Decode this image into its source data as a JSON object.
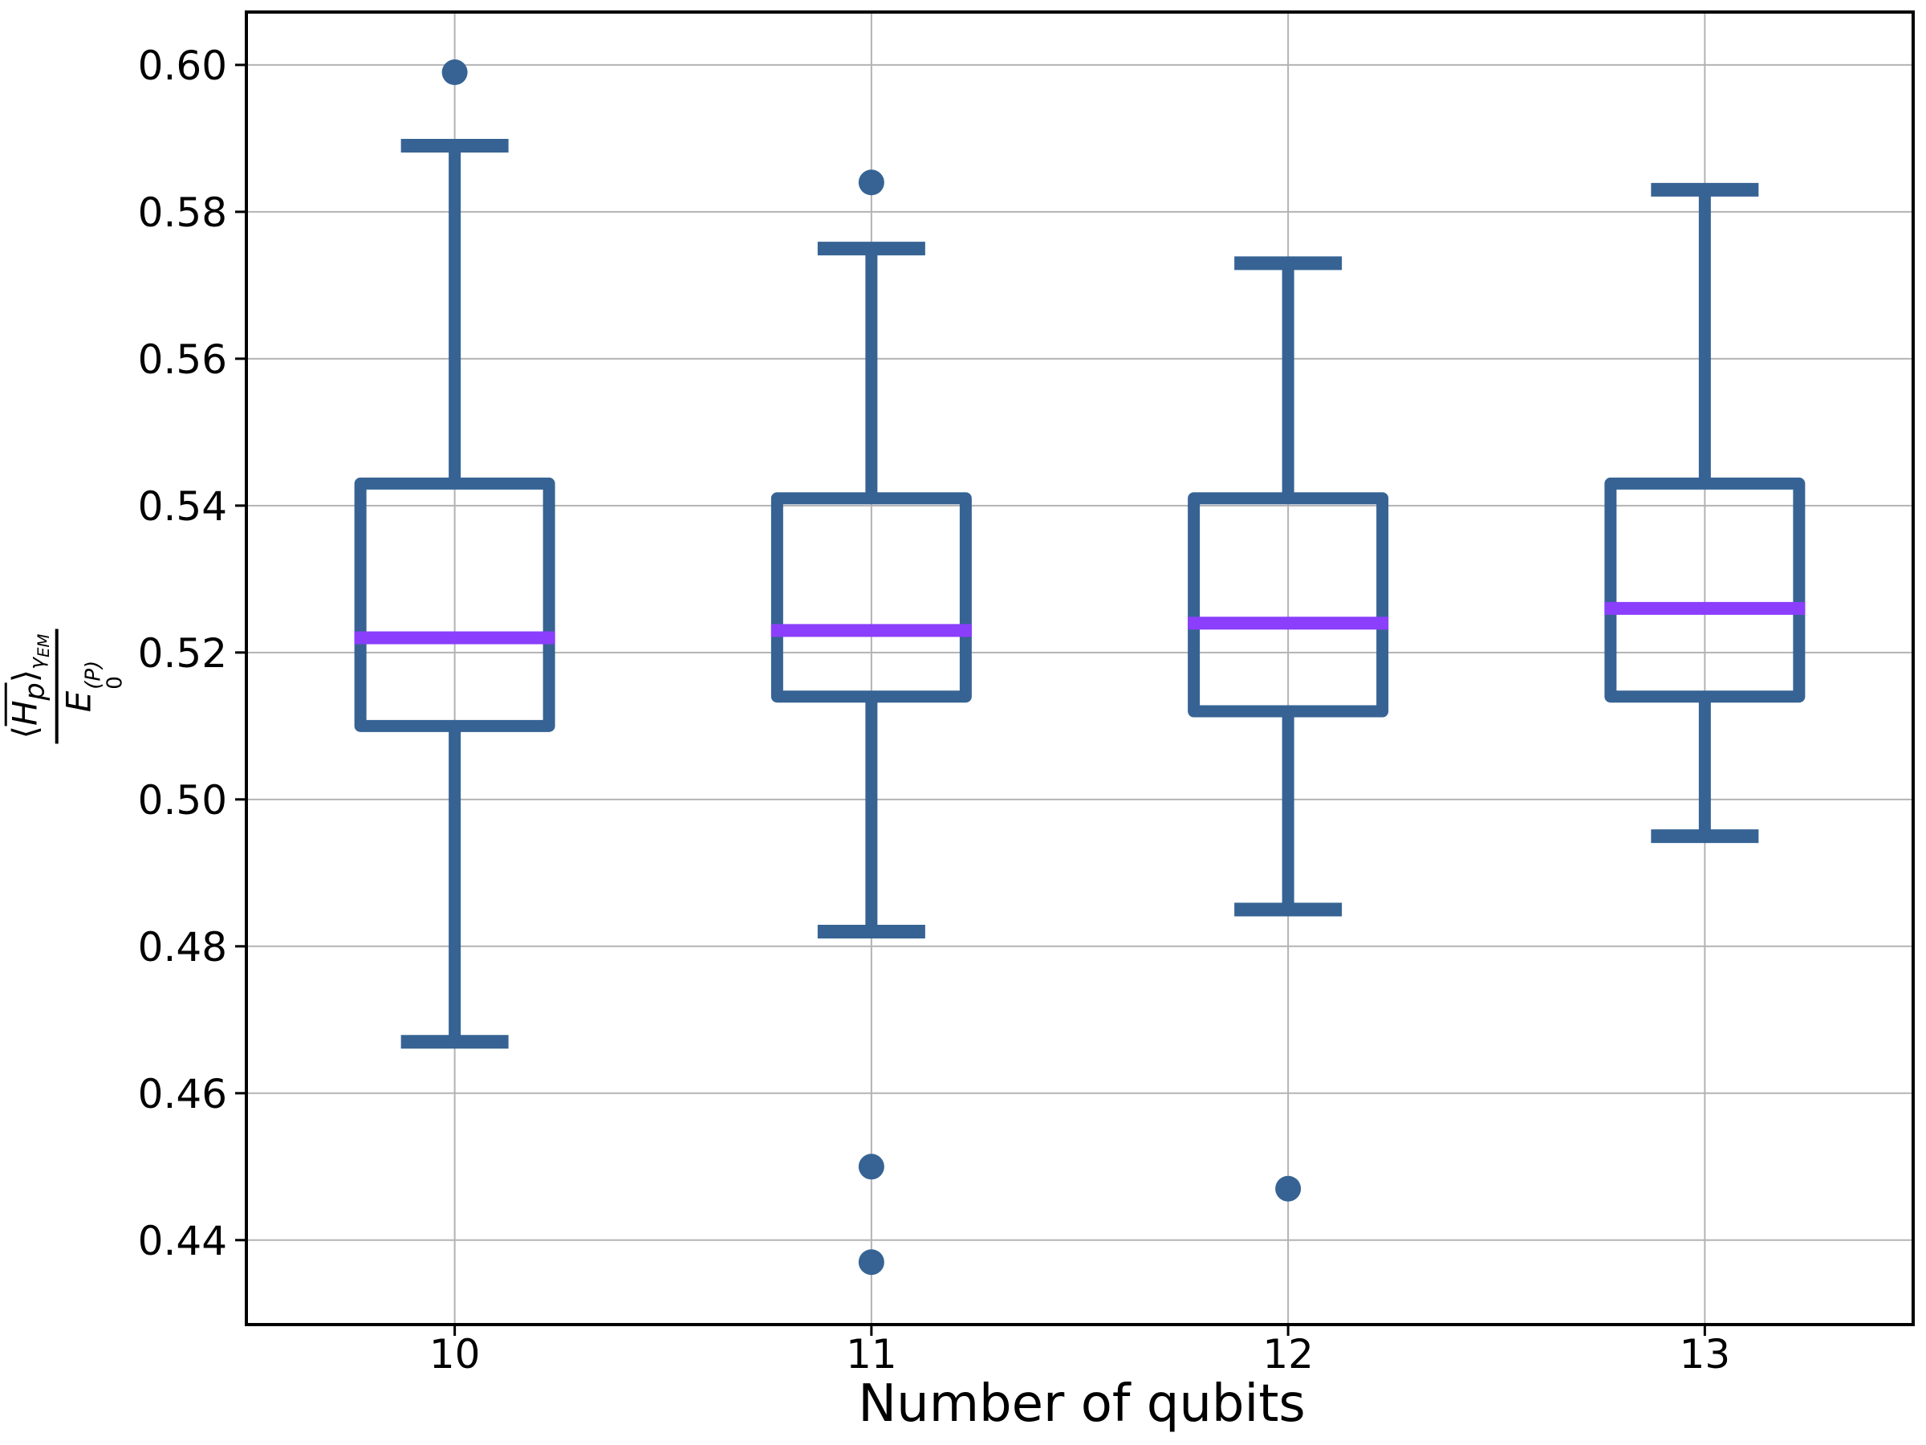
{
  "figure": {
    "xlabel": "Number of qubits",
    "ylabel_parts": {
      "open": "⟨",
      "H": "H",
      "H_sub": "p",
      "close": "⟩",
      "gamma": "γ",
      "gamma_sub": "EM",
      "E": "E",
      "E_sup": "(P)",
      "E_sub": "0"
    }
  },
  "chart_data": {
    "type": "boxplot",
    "title": "",
    "xlabel": "Number of qubits",
    "ylabel": "⟨H̄_p⟩_{γ_EM} / E_0^{(P)}",
    "categories": [
      "10",
      "11",
      "12",
      "13"
    ],
    "ylim": [
      0.4285,
      0.6072
    ],
    "yticks": [
      0.6,
      0.58,
      0.56,
      0.54,
      0.52,
      0.5,
      0.48,
      0.46,
      0.44
    ],
    "grid": true,
    "legend": false,
    "series": [
      {
        "label": "10",
        "whisker_low": 0.467,
        "q1": 0.51,
        "median": 0.522,
        "q3": 0.543,
        "whisker_high": 0.589,
        "outliers": [
          0.599
        ]
      },
      {
        "label": "11",
        "whisker_low": 0.482,
        "q1": 0.514,
        "median": 0.523,
        "q3": 0.541,
        "whisker_high": 0.575,
        "outliers": [
          0.584,
          0.45,
          0.437
        ]
      },
      {
        "label": "12",
        "whisker_low": 0.485,
        "q1": 0.512,
        "median": 0.524,
        "q3": 0.541,
        "whisker_high": 0.573,
        "outliers": [
          0.447
        ]
      },
      {
        "label": "13",
        "whisker_low": 0.495,
        "q1": 0.514,
        "median": 0.526,
        "q3": 0.543,
        "whisker_high": 0.583,
        "outliers": []
      }
    ],
    "colors": {
      "box": "#366394",
      "median": "#8b3efc",
      "grid": "#b3b3b3",
      "spine": "#000000",
      "background": "#ffffff"
    }
  }
}
